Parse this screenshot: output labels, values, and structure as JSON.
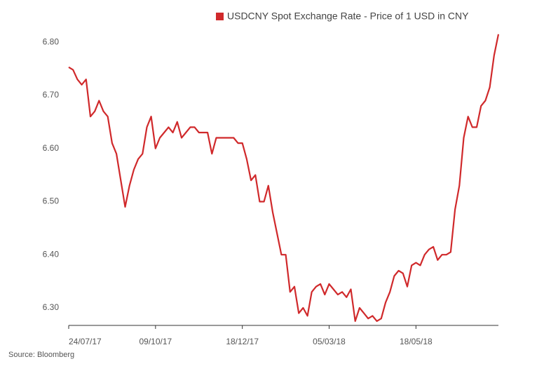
{
  "chart_data": {
    "type": "line",
    "legend_label": "USDCNY Spot Exchange Rate - Price of 1 USD in CNY",
    "source": "Source: Bloomberg",
    "categories": [
      "24/07/17",
      null,
      null,
      null,
      null,
      null,
      null,
      null,
      null,
      null,
      null,
      null,
      null,
      null,
      null,
      null,
      null,
      null,
      null,
      null,
      "09/10/17",
      null,
      null,
      null,
      null,
      null,
      null,
      null,
      null,
      null,
      null,
      null,
      null,
      null,
      null,
      null,
      null,
      null,
      null,
      null,
      "18/12/17",
      null,
      null,
      null,
      null,
      null,
      null,
      null,
      null,
      null,
      null,
      null,
      null,
      null,
      null,
      null,
      null,
      null,
      null,
      null,
      "05/03/18",
      null,
      null,
      null,
      null,
      null,
      null,
      null,
      null,
      null,
      null,
      null,
      null,
      null,
      null,
      null,
      null,
      null,
      null,
      null,
      "18/05/18",
      null,
      null,
      null,
      null,
      null,
      null,
      null,
      null,
      null,
      null,
      null,
      null,
      null,
      null,
      null,
      null,
      null,
      null,
      null
    ],
    "series": [
      {
        "name": "USDCNY Spot Exchange Rate - Price of 1 USD in CNY",
        "color": "#d0292b",
        "values": [
          6.753,
          6.748,
          6.73,
          6.72,
          6.73,
          6.66,
          6.67,
          6.69,
          6.67,
          6.66,
          6.61,
          6.59,
          6.54,
          6.49,
          6.53,
          6.56,
          6.58,
          6.59,
          6.64,
          6.66,
          6.6,
          6.62,
          6.63,
          6.64,
          6.63,
          6.65,
          6.62,
          6.63,
          6.64,
          6.64,
          6.63,
          6.63,
          6.63,
          6.59,
          6.62,
          6.62,
          6.62,
          6.62,
          6.62,
          6.61,
          6.61,
          6.58,
          6.54,
          6.55,
          6.5,
          6.5,
          6.53,
          6.48,
          6.44,
          6.4,
          6.4,
          6.33,
          6.34,
          6.29,
          6.3,
          6.285,
          6.33,
          6.34,
          6.345,
          6.325,
          6.345,
          6.335,
          6.325,
          6.33,
          6.32,
          6.335,
          6.275,
          6.3,
          6.29,
          6.28,
          6.285,
          6.275,
          6.28,
          6.31,
          6.33,
          6.36,
          6.37,
          6.365,
          6.34,
          6.38,
          6.385,
          6.38,
          6.4,
          6.41,
          6.415,
          6.39,
          6.4,
          6.4,
          6.405,
          6.485,
          6.53,
          6.62,
          6.66,
          6.64,
          6.64,
          6.68,
          6.69,
          6.715,
          6.775,
          6.815
        ]
      }
    ],
    "ylim": [
      6.267,
      6.82
    ],
    "yticks": [
      {
        "value": 6.3,
        "label": "6.30"
      },
      {
        "value": 6.4,
        "label": "6.40"
      },
      {
        "value": 6.5,
        "label": "6.50"
      },
      {
        "value": 6.6,
        "label": "6.60"
      },
      {
        "value": 6.7,
        "label": "6.70"
      },
      {
        "value": 6.8,
        "label": "6.80"
      }
    ],
    "grid": false
  }
}
